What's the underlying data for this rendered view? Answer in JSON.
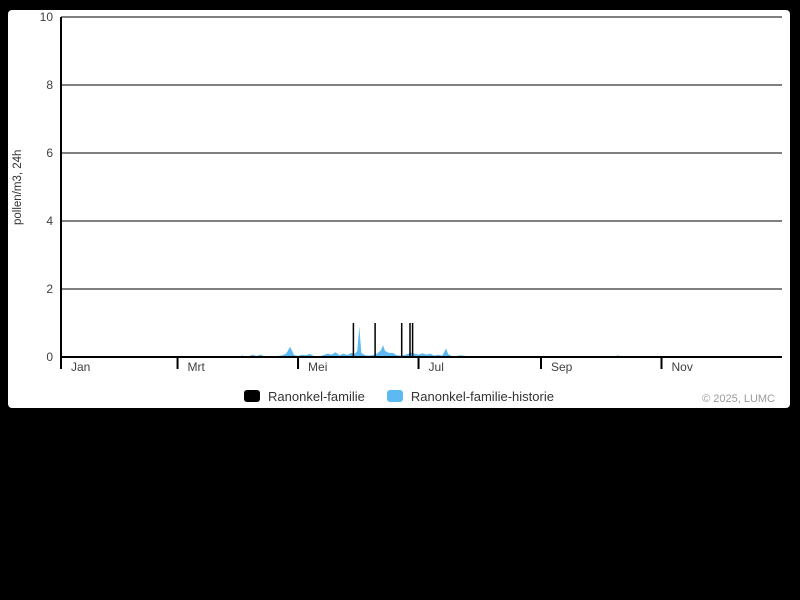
{
  "footer": {
    "credit": "© 2025, LUMC"
  },
  "panel": {
    "background": "#ffffff",
    "page_background": "#000000"
  },
  "chart_data": {
    "type": "area",
    "title": "",
    "xlabel": "",
    "ylabel": "pollen/m3, 24h",
    "ylim": [
      0,
      10
    ],
    "y_ticks": [
      0,
      2,
      4,
      6,
      8,
      10
    ],
    "x_unit": "day-of-year",
    "xlim": [
      0,
      365
    ],
    "x_tick_labels": [
      "Jan",
      "Mrt",
      "Mei",
      "Jul",
      "Sep",
      "Nov"
    ],
    "x_tick_days": [
      0,
      59,
      120,
      181,
      243,
      304
    ],
    "grid": "horizontal",
    "legend_position": "bottom-center",
    "axis_color": "#000000",
    "label_color": "#404040",
    "series": [
      {
        "name": "Ranonkel-familie",
        "type": "column",
        "color": "#000000",
        "points": [
          [
            148,
            1
          ],
          [
            159,
            1
          ],
          [
            172.5,
            1
          ],
          [
            176.7,
            1
          ],
          [
            178,
            1
          ]
        ]
      },
      {
        "name": "Ranonkel-familie-historie",
        "type": "area",
        "color": "#5db9f2",
        "points": [
          [
            90,
            0
          ],
          [
            92,
            0.05
          ],
          [
            93,
            0.01
          ],
          [
            95,
            0.02
          ],
          [
            97,
            0.07
          ],
          [
            99,
            0.03
          ],
          [
            101,
            0.07
          ],
          [
            103,
            0.02
          ],
          [
            106,
            0.01
          ],
          [
            109,
            0.02
          ],
          [
            112,
            0.05
          ],
          [
            114,
            0.1
          ],
          [
            116,
            0.3
          ],
          [
            118,
            0.06
          ],
          [
            120,
            0.03
          ],
          [
            122,
            0.07
          ],
          [
            124,
            0.05
          ],
          [
            126,
            0.09
          ],
          [
            128,
            0.03
          ],
          [
            131,
            0.02
          ],
          [
            133,
            0.06
          ],
          [
            135,
            0.1
          ],
          [
            137,
            0.07
          ],
          [
            139,
            0.14
          ],
          [
            141,
            0.05
          ],
          [
            143,
            0.1
          ],
          [
            145,
            0.06
          ],
          [
            147,
            0.12
          ],
          [
            149,
            0.1
          ],
          [
            150,
            0.18
          ],
          [
            151,
            0.9
          ],
          [
            152,
            0.12
          ],
          [
            154,
            0.05
          ],
          [
            156,
            0.04
          ],
          [
            158,
            0.06
          ],
          [
            160,
            0.1
          ],
          [
            162,
            0.2
          ],
          [
            163,
            0.35
          ],
          [
            164,
            0.18
          ],
          [
            166,
            0.12
          ],
          [
            168,
            0.12
          ],
          [
            170,
            0.05
          ],
          [
            172,
            0.04
          ],
          [
            174,
            0.06
          ],
          [
            176,
            0.1
          ],
          [
            177,
            0.13
          ],
          [
            179,
            0.1
          ],
          [
            181,
            0.07
          ],
          [
            183,
            0.11
          ],
          [
            185,
            0.07
          ],
          [
            187,
            0.1
          ],
          [
            189,
            0.04
          ],
          [
            191,
            0.07
          ],
          [
            193,
            0.04
          ],
          [
            195,
            0.25
          ],
          [
            196,
            0.08
          ],
          [
            198,
            0.03
          ],
          [
            200,
            0.02
          ],
          [
            202,
            0.05
          ],
          [
            204,
            0.04
          ],
          [
            206,
            0.01
          ],
          [
            208,
            0
          ],
          [
            280,
            0
          ],
          [
            282,
            0.05
          ],
          [
            284,
            0
          ]
        ]
      }
    ]
  }
}
